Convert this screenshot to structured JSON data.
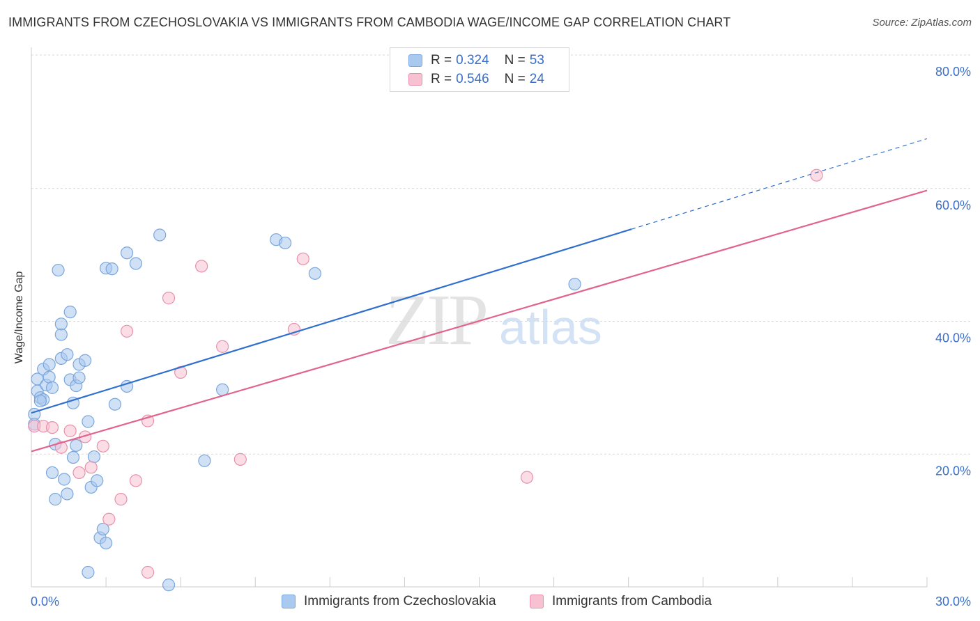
{
  "title": "IMMIGRANTS FROM CZECHOSLOVAKIA VS IMMIGRANTS FROM CAMBODIA WAGE/INCOME GAP CORRELATION CHART",
  "source": "Source: ZipAtlas.com",
  "watermark": {
    "zip": "ZIP",
    "atlas": "atlas"
  },
  "legend": {
    "rows": [
      {
        "r_label": "R =",
        "r_value": "0.324",
        "n_label": "N =",
        "n_value": "53",
        "color": "#aac9ef",
        "border": "#7aa6dd"
      },
      {
        "r_label": "R =",
        "r_value": "0.546",
        "n_label": "N =",
        "n_value": "24",
        "color": "#f7c1d2",
        "border": "#e891ad"
      }
    ]
  },
  "bottom_legend": [
    {
      "label": "Immigrants from Czechoslovakia",
      "color": "#aac9ef",
      "border": "#7aa6dd"
    },
    {
      "label": "Immigrants from Cambodia",
      "color": "#f7c1d2",
      "border": "#e891ad"
    }
  ],
  "chart_data": {
    "type": "scatter",
    "title": "IMMIGRANTS FROM CZECHOSLOVAKIA VS IMMIGRANTS FROM CAMBODIA WAGE/INCOME GAP CORRELATION CHART",
    "xlabel": "",
    "ylabel": "Wage/Income Gap",
    "xlim": [
      0,
      30
    ],
    "ylim": [
      0,
      80
    ],
    "x_tick_labels": [
      "0.0%",
      "30.0%"
    ],
    "y_ticks": [
      20,
      40,
      60,
      80
    ],
    "y_tick_labels": [
      "20.0%",
      "40.0%",
      "60.0%",
      "80.0%"
    ],
    "grid": true,
    "legend_position": "top-center",
    "series": [
      {
        "name": "Immigrants from Czechoslovakia",
        "color": "#7aa6dd",
        "fill": "#aac9ef",
        "line_color": "#2f6fce",
        "trend": {
          "x0": 0,
          "y0": 26.2,
          "x1": 30,
          "y1": 67.5,
          "solid_until_x": 20.1
        },
        "points": [
          [
            0.1,
            26.0
          ],
          [
            0.1,
            24.5
          ],
          [
            0.2,
            29.5
          ],
          [
            0.2,
            31.3
          ],
          [
            0.3,
            28.5
          ],
          [
            0.4,
            28.2
          ],
          [
            0.4,
            32.8
          ],
          [
            0.5,
            30.4
          ],
          [
            0.6,
            33.5
          ],
          [
            0.6,
            31.6
          ],
          [
            0.7,
            30.0
          ],
          [
            0.7,
            17.2
          ],
          [
            0.8,
            13.2
          ],
          [
            0.8,
            21.5
          ],
          [
            0.9,
            47.7
          ],
          [
            1.0,
            34.4
          ],
          [
            1.0,
            38.0
          ],
          [
            1.0,
            39.6
          ],
          [
            1.1,
            16.2
          ],
          [
            1.2,
            14.0
          ],
          [
            1.2,
            35.0
          ],
          [
            1.3,
            31.2
          ],
          [
            1.3,
            41.4
          ],
          [
            1.4,
            19.5
          ],
          [
            1.4,
            27.7
          ],
          [
            1.5,
            21.3
          ],
          [
            1.5,
            30.3
          ],
          [
            1.6,
            31.5
          ],
          [
            1.6,
            33.5
          ],
          [
            1.8,
            34.1
          ],
          [
            1.9,
            24.9
          ],
          [
            1.9,
            2.2
          ],
          [
            2.0,
            15.0
          ],
          [
            2.1,
            19.6
          ],
          [
            2.2,
            16.0
          ],
          [
            2.3,
            7.4
          ],
          [
            2.4,
            8.7
          ],
          [
            2.5,
            48.0
          ],
          [
            2.5,
            6.6
          ],
          [
            2.7,
            47.9
          ],
          [
            2.8,
            27.5
          ],
          [
            3.2,
            30.2
          ],
          [
            3.2,
            50.3
          ],
          [
            3.5,
            48.7
          ],
          [
            4.3,
            53.0
          ],
          [
            4.6,
            0.3
          ],
          [
            5.8,
            19.0
          ],
          [
            6.4,
            29.7
          ],
          [
            8.2,
            52.3
          ],
          [
            8.5,
            51.8
          ],
          [
            9.5,
            47.2
          ],
          [
            18.2,
            45.6
          ],
          [
            0.3,
            28.0
          ]
        ]
      },
      {
        "name": "Immigrants from Cambodia",
        "color": "#e891ad",
        "fill": "#f7c1d2",
        "line_color": "#e0648e",
        "trend": {
          "x0": 0,
          "y0": 20.4,
          "x1": 30,
          "y1": 59.7
        },
        "points": [
          [
            0.1,
            24.2
          ],
          [
            0.4,
            24.2
          ],
          [
            0.7,
            24.0
          ],
          [
            1.0,
            21.0
          ],
          [
            1.3,
            23.5
          ],
          [
            1.6,
            17.2
          ],
          [
            1.8,
            22.6
          ],
          [
            2.0,
            18.0
          ],
          [
            2.4,
            21.2
          ],
          [
            2.6,
            10.2
          ],
          [
            3.0,
            13.2
          ],
          [
            3.2,
            38.5
          ],
          [
            3.5,
            16.0
          ],
          [
            3.9,
            2.2
          ],
          [
            3.9,
            25.0
          ],
          [
            4.6,
            43.5
          ],
          [
            5.0,
            32.3
          ],
          [
            5.7,
            48.3
          ],
          [
            6.4,
            36.2
          ],
          [
            7.0,
            19.2
          ],
          [
            8.8,
            38.8
          ],
          [
            9.1,
            49.4
          ],
          [
            16.6,
            16.5
          ],
          [
            26.3,
            62.0
          ]
        ]
      }
    ]
  }
}
